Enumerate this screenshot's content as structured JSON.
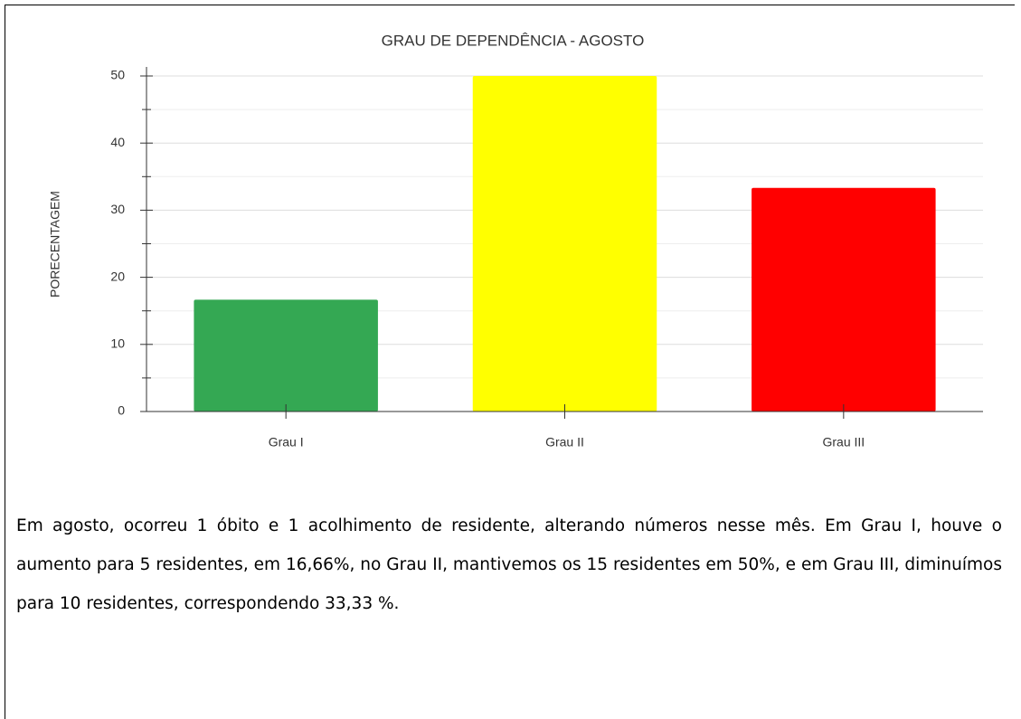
{
  "chart_data": {
    "type": "bar",
    "title": "GRAU DE DEPENDÊNCIA - AGOSTO",
    "y_label": "PORECENTAGEM",
    "categories": [
      "Grau I",
      "Grau II",
      "Grau III"
    ],
    "values": [
      16.66,
      50,
      33.33
    ],
    "colors": [
      "#34a853",
      "#ffff00",
      "#ff0000"
    ],
    "ylim": [
      0,
      50
    ],
    "yticks": [
      0,
      10,
      20,
      30,
      40,
      50
    ],
    "yticks_minor": [
      5,
      15,
      25,
      35,
      45
    ],
    "grid": true
  },
  "paragraph": "Em agosto, ocorreu 1 óbito e 1 acolhimento de residente, alterando números nesse mês. Em Grau I, houve o aumento para 5 residentes, em 16,66%, no Grau II, mantivemos os 15 residentes em 50%, e em Grau III, diminuímos para 10 residentes, correspondendo 33,33 %."
}
